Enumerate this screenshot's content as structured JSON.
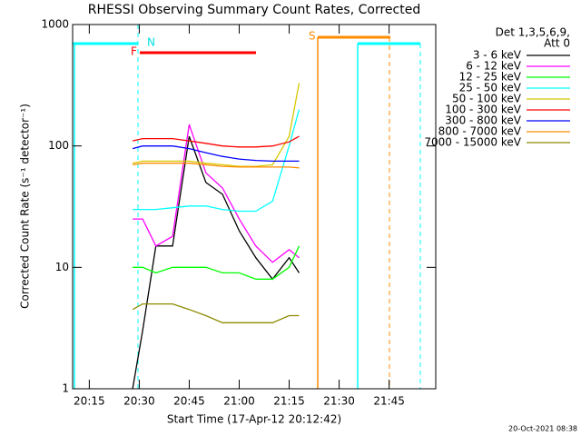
{
  "chart_data": {
    "type": "line",
    "title": "RHESSI Observing Summary Count Rates, Corrected",
    "xlabel": "Start Time (17-Apr-12 20:12:42)",
    "ylabel": "Corrected Count Rate (s⁻¹ detector⁻¹)",
    "footer": "20-Oct-2021 08:38",
    "legend_title": [
      "Det 1,3,5,6,9,",
      "Att 0"
    ],
    "log_y": true,
    "xlim": [
      "20:10",
      "21:59"
    ],
    "xticks": [
      "20:15",
      "20:30",
      "20:45",
      "21:00",
      "21:15",
      "21:30",
      "21:45"
    ],
    "ylim": [
      1,
      1000
    ],
    "yticks": [
      1,
      10,
      100,
      1000
    ],
    "annotations": [
      {
        "label": "N"
      },
      {
        "label": "F"
      },
      {
        "label": "S"
      }
    ],
    "x": [
      "20:28",
      "20:31",
      "20:35",
      "20:40",
      "20:45",
      "20:50",
      "20:55",
      "21:00",
      "21:05",
      "21:10",
      "21:15",
      "21:18"
    ],
    "series": [
      {
        "name": "3 - 6 keV",
        "color": "#000000",
        "values": [
          1,
          3,
          15,
          15,
          120,
          50,
          40,
          20,
          12,
          8,
          12,
          9
        ]
      },
      {
        "name": "6 - 12 keV",
        "color": "#ff00ff",
        "values": [
          25,
          25,
          15,
          18,
          150,
          60,
          45,
          25,
          15,
          11,
          14,
          12
        ]
      },
      {
        "name": "12 - 25 keV",
        "color": "#00ff00",
        "values": [
          10,
          10,
          9,
          10,
          10,
          10,
          9,
          9,
          8,
          8,
          10,
          15
        ]
      },
      {
        "name": "25 - 50 keV",
        "color": "#00ffff",
        "values": [
          30,
          30,
          30,
          31,
          32,
          32,
          30,
          29,
          29,
          35,
          100,
          200
        ]
      },
      {
        "name": "50 - 100 keV",
        "color": "#d7c800",
        "values": [
          72,
          75,
          75,
          75,
          75,
          72,
          70,
          68,
          68,
          70,
          120,
          330
        ]
      },
      {
        "name": "100 - 300 keV",
        "color": "#ff0000",
        "values": [
          110,
          115,
          115,
          115,
          110,
          105,
          100,
          98,
          98,
          100,
          108,
          120
        ]
      },
      {
        "name": "300 - 800 keV",
        "color": "#0000ff",
        "values": [
          95,
          100,
          100,
          100,
          95,
          88,
          82,
          78,
          76,
          75,
          75,
          75
        ]
      },
      {
        "name": "800 - 7000 keV",
        "color": "#ff8c00",
        "values": [
          70,
          72,
          72,
          72,
          72,
          70,
          68,
          67,
          67,
          67,
          67,
          66
        ]
      },
      {
        "name": "7000 - 15000 keV",
        "color": "#8b8b00",
        "values": [
          4.5,
          5,
          5,
          5,
          4.5,
          4,
          3.5,
          3.5,
          3.5,
          3.5,
          4,
          4
        ]
      }
    ]
  }
}
